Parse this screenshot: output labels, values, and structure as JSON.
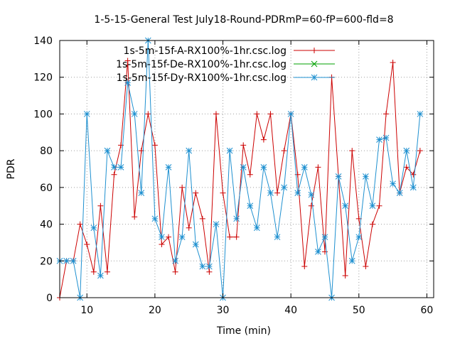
{
  "chart_data": {
    "type": "line",
    "title": "1-5-15-General Test July18-Round-PDRmP=60-fP=600-fld=8",
    "xlabel": "Time (min)",
    "ylabel": "PDR",
    "xlim": [
      6,
      61
    ],
    "ylim": [
      0,
      140
    ],
    "xticks": [
      10,
      20,
      30,
      40,
      50,
      60
    ],
    "yticks": [
      0,
      20,
      40,
      60,
      80,
      100,
      120,
      140
    ],
    "grid": true,
    "legend_position": "top-left",
    "series": [
      {
        "name": "1s-5m-15f-A-RX100%-1hr.csc.log",
        "color": "#cc0000",
        "marker": "plus",
        "x": [
          6,
          7,
          8,
          9,
          10,
          11,
          12,
          13,
          14,
          15,
          16,
          17,
          18,
          19,
          20,
          21,
          22,
          23,
          24,
          25,
          26,
          27,
          28,
          29,
          30,
          31,
          32,
          33,
          34,
          35,
          36,
          37,
          38,
          39,
          40,
          41,
          42,
          43,
          44,
          45,
          46,
          47,
          48,
          49,
          50,
          51,
          52,
          53,
          54,
          55,
          56,
          57,
          58,
          59
        ],
        "y": [
          0,
          20,
          20,
          40,
          29,
          14,
          50,
          14,
          67,
          83,
          129,
          44,
          80,
          100,
          83,
          29,
          33,
          14,
          60,
          38,
          57,
          43,
          14,
          100,
          57,
          33,
          33,
          83,
          67,
          100,
          86,
          100,
          57,
          80,
          100,
          67,
          17,
          50,
          71,
          25,
          120,
          66,
          12,
          80,
          43,
          17,
          40,
          50,
          100,
          128,
          57,
          71,
          67,
          80
        ]
      },
      {
        "name": "1s-5m-15f-De-RX100%-1hr.csc.log",
        "color": "#00a000",
        "marker": "cross",
        "x": [],
        "y": []
      },
      {
        "name": "1s-5m-15f-Dy-RX100%-1hr.csc.log",
        "color": "#1e90d0",
        "marker": "star",
        "x": [
          6,
          7,
          8,
          9,
          10,
          11,
          12,
          13,
          14,
          15,
          16,
          17,
          18,
          19,
          20,
          21,
          22,
          23,
          24,
          25,
          26,
          27,
          28,
          29,
          30,
          31,
          32,
          33,
          34,
          35,
          36,
          37,
          38,
          39,
          40,
          41,
          42,
          43,
          44,
          45,
          46,
          47,
          48,
          49,
          50,
          51,
          52,
          53,
          54,
          55,
          56,
          57,
          58,
          59
        ],
        "y": [
          20,
          20,
          20,
          0,
          100,
          38,
          12,
          80,
          71,
          71,
          117,
          100,
          57,
          140,
          43,
          33,
          71,
          20,
          33,
          80,
          29,
          17,
          17,
          40,
          0,
          80,
          43,
          71,
          50,
          38,
          71,
          57,
          33,
          60,
          100,
          57,
          71,
          56,
          25,
          33,
          0,
          66,
          50,
          20,
          33,
          66,
          50,
          86,
          87,
          62,
          57,
          80,
          60,
          100
        ]
      }
    ]
  }
}
